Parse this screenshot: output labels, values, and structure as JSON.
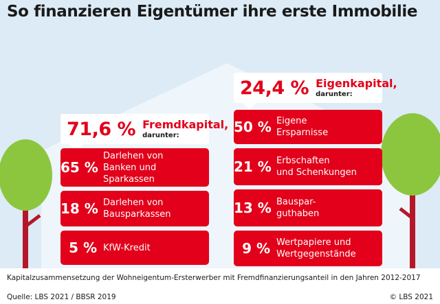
{
  "title": "So finanzieren Eigentümer ihre erste Immobilie",
  "colors": {
    "accent": "#e2001a",
    "background": "#dcebf5",
    "house": "#eef5fb",
    "tree_crown": "#8cc63f",
    "tree_trunk": "#b5172a"
  },
  "chart_data": {
    "type": "table",
    "groups": [
      {
        "name": "Fremdkapital",
        "total_label": "71,6 %",
        "total_value": 71.6,
        "sub_label": "darunter:",
        "items": [
          {
            "pct_label": "65 %",
            "value": 65,
            "label": "Darlehen von\nBanken und Sparkassen"
          },
          {
            "pct_label": "18 %",
            "value": 18,
            "label": "Darlehen von\nBausparkassen"
          },
          {
            "pct_label": "5 %",
            "value": 5,
            "label": "KfW-Kredit"
          }
        ]
      },
      {
        "name": "Eigenkapital,",
        "total_label": "24,4 %",
        "total_value": 24.4,
        "sub_label": "darunter:",
        "items": [
          {
            "pct_label": "50 %",
            "value": 50,
            "label": "Eigene\nErsparnisse"
          },
          {
            "pct_label": "21 %",
            "value": 21,
            "label": "Erbschaften\nund Schenkungen"
          },
          {
            "pct_label": "13 %",
            "value": 13,
            "label": "Bauspar-\nguthaben"
          },
          {
            "pct_label": "9 %",
            "value": 9,
            "label": "Wertpapiere und\nWertgegenstände"
          }
        ]
      }
    ]
  },
  "left_summary": {
    "pct": "71,6 %",
    "label": "Fremdkapital,",
    "sub": "darunter:"
  },
  "right_summary": {
    "pct": "24,4 %",
    "label": "Eigenkapital,",
    "sub": "darunter:"
  },
  "footer": {
    "caption": "Kapitalzusammensetzung der Wohneigentum-Ersterwerber mit Fremdfinanzierungsanteil in den Jahren 2012-2017",
    "source": "Quelle: LBS 2021 / BBSR 2019",
    "copyright": "© LBS 2021"
  }
}
